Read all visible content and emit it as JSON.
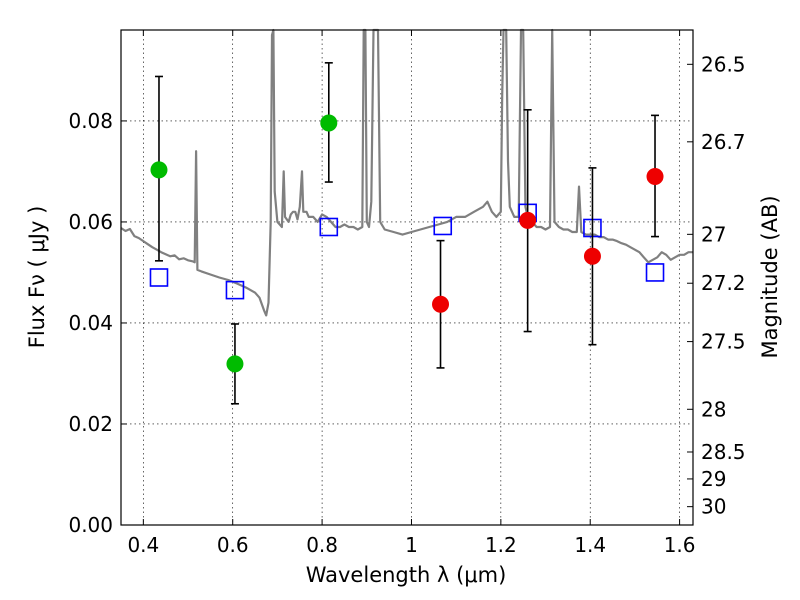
{
  "chart_data": {
    "type": "scatter",
    "xlabel": "Wavelength  λ (μm)",
    "ylabel": "Flux  Fν  ( μJy )",
    "y2label": "Magnitude (AB)",
    "xlim": [
      0.35,
      1.63
    ],
    "ylim": [
      0.0,
      0.098
    ],
    "grid": true,
    "x_ticks": [
      0.4,
      0.6,
      0.8,
      1.0,
      1.2,
      1.4,
      1.6
    ],
    "x_tick_labels": [
      "0.4",
      "0.6",
      "0.8",
      "1",
      "1.2",
      "1.4",
      "1.6"
    ],
    "y_ticks": [
      0.0,
      0.02,
      0.04,
      0.06,
      0.08
    ],
    "y_tick_labels": [
      "0.00",
      "0.02",
      "0.04",
      "0.06",
      "0.08"
    ],
    "y2_ticks": [
      {
        "label": "26.5",
        "mag": 26.5
      },
      {
        "label": "26.7",
        "mag": 26.7
      },
      {
        "label": "27",
        "mag": 27.0
      },
      {
        "label": "27.2",
        "mag": 27.2
      },
      {
        "label": "27.5",
        "mag": 27.5
      },
      {
        "label": "28",
        "mag": 28.0
      },
      {
        "label": "28.5",
        "mag": 28.5
      },
      {
        "label": "29",
        "mag": 29.0
      },
      {
        "label": "30",
        "mag": 30.0
      }
    ],
    "series": [
      {
        "kind": "line",
        "color": "#808080",
        "points": [
          [
            0.35,
            0.0588
          ],
          [
            0.36,
            0.0582
          ],
          [
            0.37,
            0.0586
          ],
          [
            0.38,
            0.0572
          ],
          [
            0.39,
            0.0568
          ],
          [
            0.4,
            0.0562
          ],
          [
            0.41,
            0.0556
          ],
          [
            0.42,
            0.055
          ],
          [
            0.43,
            0.0545
          ],
          [
            0.44,
            0.054
          ],
          [
            0.45,
            0.0536
          ],
          [
            0.46,
            0.0532
          ],
          [
            0.47,
            0.0534
          ],
          [
            0.48,
            0.0526
          ],
          [
            0.49,
            0.0528
          ],
          [
            0.5,
            0.0524
          ],
          [
            0.51,
            0.0522
          ],
          [
            0.515,
            0.052
          ],
          [
            0.518,
            0.074
          ],
          [
            0.521,
            0.0505
          ],
          [
            0.53,
            0.0502
          ],
          [
            0.55,
            0.0496
          ],
          [
            0.57,
            0.049
          ],
          [
            0.59,
            0.0485
          ],
          [
            0.61,
            0.0478
          ],
          [
            0.63,
            0.047
          ],
          [
            0.65,
            0.046
          ],
          [
            0.66,
            0.045
          ],
          [
            0.67,
            0.0425
          ],
          [
            0.675,
            0.0415
          ],
          [
            0.68,
            0.044
          ],
          [
            0.685,
            0.06
          ],
          [
            0.688,
            0.097
          ],
          [
            0.691,
            0.098
          ],
          [
            0.694,
            0.066
          ],
          [
            0.7,
            0.06
          ],
          [
            0.71,
            0.059
          ],
          [
            0.714,
            0.07
          ],
          [
            0.717,
            0.061
          ],
          [
            0.725,
            0.06
          ],
          [
            0.73,
            0.0615
          ],
          [
            0.735,
            0.062
          ],
          [
            0.74,
            0.062
          ],
          [
            0.745,
            0.0605
          ],
          [
            0.75,
            0.063
          ],
          [
            0.755,
            0.07
          ],
          [
            0.758,
            0.062
          ],
          [
            0.765,
            0.062
          ],
          [
            0.77,
            0.061
          ],
          [
            0.78,
            0.061
          ],
          [
            0.79,
            0.06
          ],
          [
            0.8,
            0.0615
          ],
          [
            0.81,
            0.061
          ],
          [
            0.82,
            0.06
          ],
          [
            0.83,
            0.059
          ],
          [
            0.84,
            0.059
          ],
          [
            0.85,
            0.0595
          ],
          [
            0.86,
            0.059
          ],
          [
            0.87,
            0.059
          ],
          [
            0.88,
            0.0585
          ],
          [
            0.89,
            0.059
          ],
          [
            0.893,
            0.098
          ],
          [
            0.897,
            0.098
          ],
          [
            0.9,
            0.06
          ],
          [
            0.905,
            0.059
          ],
          [
            0.91,
            0.064
          ],
          [
            0.915,
            0.098
          ],
          [
            0.925,
            0.098
          ],
          [
            0.93,
            0.06
          ],
          [
            0.94,
            0.0585
          ],
          [
            0.96,
            0.058
          ],
          [
            0.98,
            0.0575
          ],
          [
            1.0,
            0.058
          ],
          [
            1.02,
            0.0585
          ],
          [
            1.04,
            0.059
          ],
          [
            1.06,
            0.0595
          ],
          [
            1.08,
            0.06
          ],
          [
            1.1,
            0.061
          ],
          [
            1.12,
            0.061
          ],
          [
            1.14,
            0.062
          ],
          [
            1.16,
            0.063
          ],
          [
            1.17,
            0.064
          ],
          [
            1.18,
            0.062
          ],
          [
            1.19,
            0.061
          ],
          [
            1.2,
            0.062
          ],
          [
            1.203,
            0.085
          ],
          [
            1.206,
            0.098
          ],
          [
            1.212,
            0.098
          ],
          [
            1.216,
            0.072
          ],
          [
            1.22,
            0.063
          ],
          [
            1.23,
            0.061
          ],
          [
            1.24,
            0.061
          ],
          [
            1.245,
            0.098
          ],
          [
            1.25,
            0.098
          ],
          [
            1.255,
            0.063
          ],
          [
            1.26,
            0.061
          ],
          [
            1.27,
            0.06
          ],
          [
            1.28,
            0.059
          ],
          [
            1.29,
            0.059
          ],
          [
            1.3,
            0.0585
          ],
          [
            1.31,
            0.059
          ],
          [
            1.315,
            0.098
          ],
          [
            1.32,
            0.06
          ],
          [
            1.33,
            0.059
          ],
          [
            1.34,
            0.0585
          ],
          [
            1.35,
            0.0585
          ],
          [
            1.36,
            0.058
          ],
          [
            1.37,
            0.058
          ],
          [
            1.375,
            0.067
          ],
          [
            1.38,
            0.058
          ],
          [
            1.39,
            0.0575
          ],
          [
            1.4,
            0.0575
          ],
          [
            1.41,
            0.0575
          ],
          [
            1.42,
            0.057
          ],
          [
            1.43,
            0.057
          ],
          [
            1.44,
            0.0565
          ],
          [
            1.45,
            0.0565
          ],
          [
            1.46,
            0.0562
          ],
          [
            1.47,
            0.0558
          ],
          [
            1.48,
            0.0555
          ],
          [
            1.49,
            0.055
          ],
          [
            1.5,
            0.0545
          ],
          [
            1.51,
            0.054
          ],
          [
            1.52,
            0.053
          ],
          [
            1.53,
            0.052
          ],
          [
            1.54,
            0.0525
          ],
          [
            1.55,
            0.053
          ],
          [
            1.56,
            0.054
          ],
          [
            1.57,
            0.0535
          ],
          [
            1.58,
            0.0525
          ],
          [
            1.59,
            0.053
          ],
          [
            1.6,
            0.0535
          ],
          [
            1.61,
            0.0535
          ],
          [
            1.62,
            0.054
          ],
          [
            1.63,
            0.054
          ]
        ]
      },
      {
        "kind": "open-square",
        "color": "#0000ff",
        "points": [
          [
            0.435,
            0.049
          ],
          [
            0.605,
            0.0465
          ],
          [
            0.815,
            0.059
          ],
          [
            1.07,
            0.0592
          ],
          [
            1.26,
            0.0618
          ],
          [
            1.405,
            0.0588
          ],
          [
            1.545,
            0.05
          ]
        ]
      },
      {
        "kind": "filled-circle",
        "color": "#00bb00",
        "points": [
          {
            "x": 0.435,
            "y": 0.0703,
            "err": [
              0.0523,
              0.0888
            ]
          },
          {
            "x": 0.605,
            "y": 0.0319,
            "err": [
              0.024,
              0.0398
            ]
          },
          {
            "x": 0.815,
            "y": 0.0796,
            "err": [
              0.0679,
              0.0915
            ]
          }
        ]
      },
      {
        "kind": "filled-circle",
        "color": "#ee0000",
        "points": [
          {
            "x": 1.065,
            "y": 0.0437,
            "err": [
              0.0311,
              0.0563
            ]
          },
          {
            "x": 1.26,
            "y": 0.0603,
            "err": [
              0.0383,
              0.0822
            ]
          },
          {
            "x": 1.405,
            "y": 0.0532,
            "err": [
              0.0357,
              0.0707
            ]
          },
          {
            "x": 1.545,
            "y": 0.069,
            "err": [
              0.0571,
              0.0811
            ]
          }
        ]
      }
    ]
  }
}
